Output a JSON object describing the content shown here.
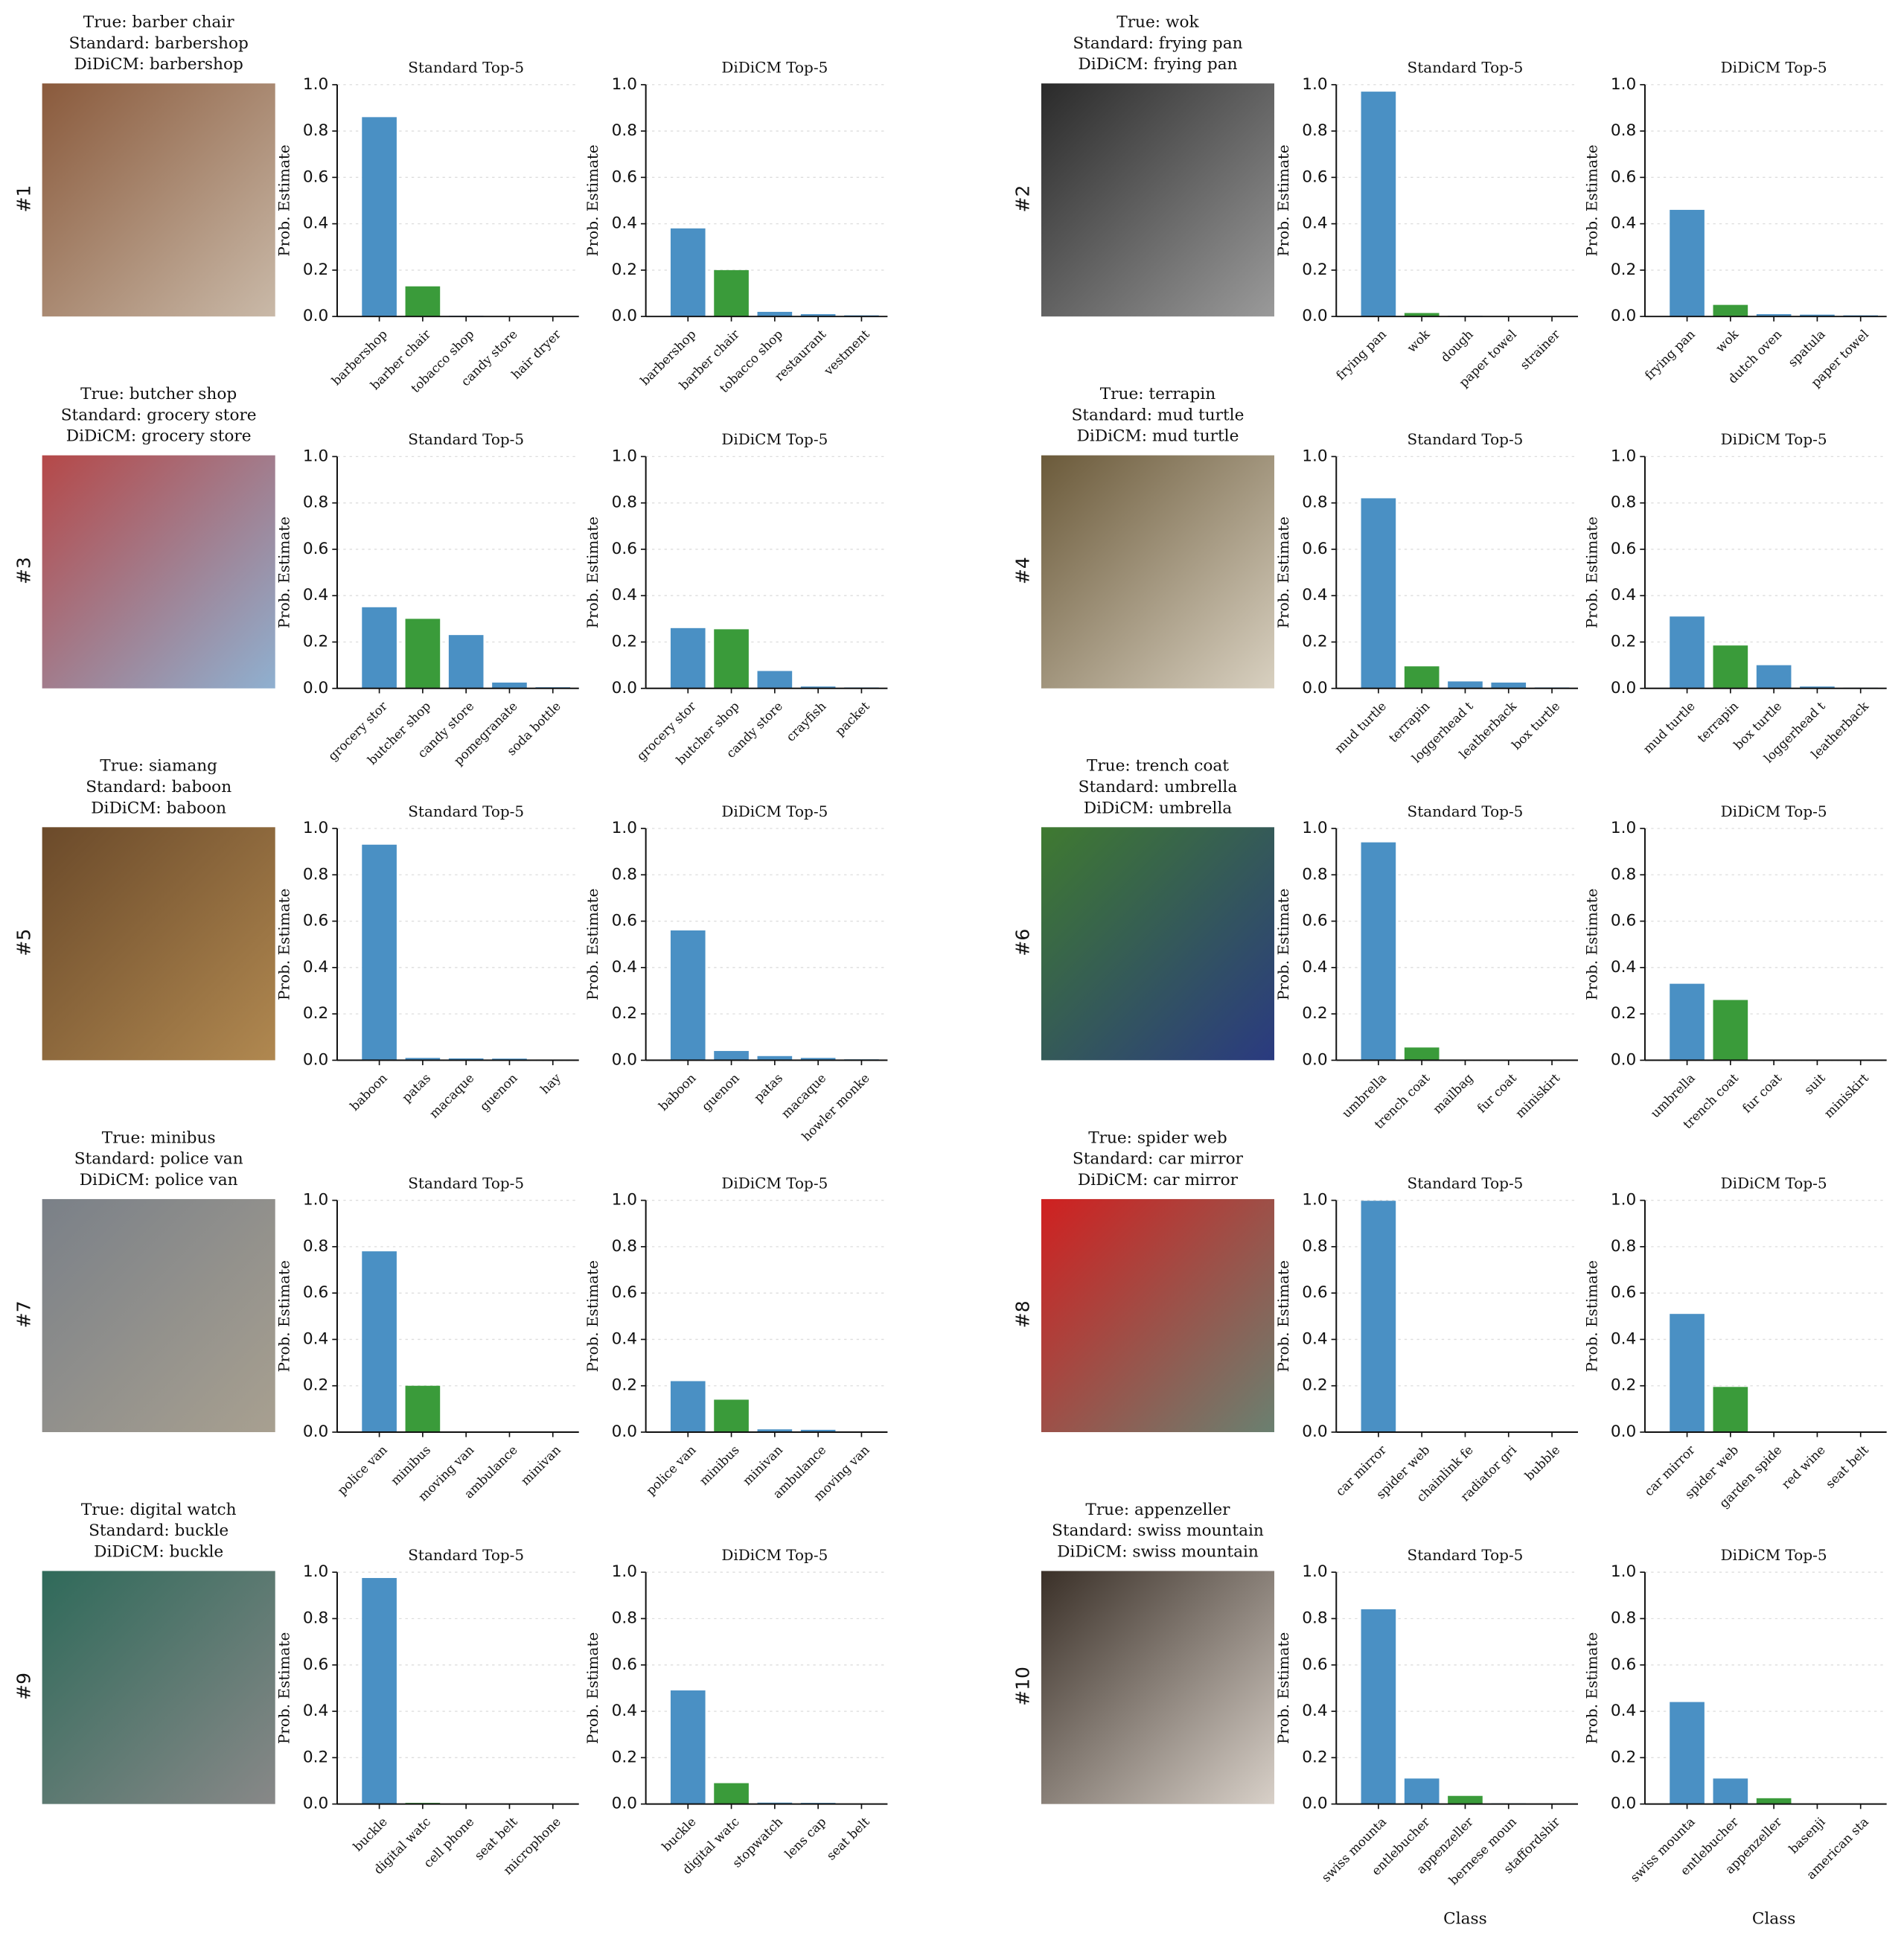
{
  "panels": [
    {
      "number": "#1",
      "true_label": "True: barber chair",
      "standard_label": "Standard: barbershop",
      "didicm_label": "DiDiCM: barbershop"
    },
    {
      "number": "#2",
      "true_label": "True: wok",
      "standard_label": "Standard: frying pan",
      "didicm_label": "DiDiCM: frying pan"
    },
    {
      "number": "#3",
      "true_label": "True: butcher shop",
      "standard_label": "Standard: grocery store",
      "didicm_label": "DiDiCM: grocery store"
    },
    {
      "number": "#4",
      "true_label": "True: terrapin",
      "standard_label": "Standard: mud turtle",
      "didicm_label": "DiDiCM: mud turtle"
    },
    {
      "number": "#5",
      "true_label": "True: siamang",
      "standard_label": "Standard: baboon",
      "didicm_label": "DiDiCM: baboon"
    },
    {
      "number": "#6",
      "true_label": "True: trench coat",
      "standard_label": "Standard: umbrella",
      "didicm_label": "DiDiCM: umbrella"
    },
    {
      "number": "#7",
      "true_label": "True: minibus",
      "standard_label": "Standard: police van",
      "didicm_label": "DiDiCM: police van"
    },
    {
      "number": "#8",
      "true_label": "True: spider web",
      "standard_label": "Standard: car mirror",
      "didicm_label": "DiDiCM: car mirror"
    },
    {
      "number": "#9",
      "true_label": "True: digital watch",
      "standard_label": "Standard: buckle",
      "didicm_label": "DiDiCM: buckle"
    },
    {
      "number": "#10",
      "true_label": "True: appenzeller",
      "standard_label": "Standard: swiss mountain",
      "didicm_label": "DiDiCM: swiss mountain"
    }
  ],
  "chart_data": [
    {
      "type": "bar",
      "title": "Standard Top-5",
      "ylabel": "Prob. Estimate",
      "categories": [
        "barbershop",
        "barber chair",
        "tobacco shop",
        "candy store",
        "hair dryer"
      ],
      "values": [
        0.86,
        0.13,
        0.003,
        0.002,
        0.002
      ],
      "colors": [
        "#4a90c4",
        "#3a9b3a",
        "#4a90c4",
        "#4a90c4",
        "#4a90c4"
      ],
      "ylim": [
        0,
        1
      ],
      "yticks": [
        {
          "value": 0,
          "label": "0.0"
        },
        0.2,
        0.4,
        0.6,
        0.8,
        {
          "value": 1,
          "label": "1.0"
        }
      ],
      "grid": true
    },
    {
      "type": "bar",
      "title": "DiDiCM Top-5",
      "ylabel": "Prob. Estimate",
      "categories": [
        "barbershop",
        "barber chair",
        "tobacco shop",
        "restaurant",
        "vestment"
      ],
      "values": [
        0.38,
        0.2,
        0.02,
        0.01,
        0.005
      ],
      "colors": [
        "#4a90c4",
        "#3a9b3a",
        "#4a90c4",
        "#4a90c4",
        "#4a90c4"
      ],
      "ylim": [
        0,
        1
      ],
      "yticks": [
        {
          "value": 0,
          "label": "0.0"
        },
        0.2,
        0.4,
        0.6,
        0.8,
        {
          "value": 1,
          "label": "1.0"
        }
      ],
      "grid": true
    },
    {
      "type": "bar",
      "title": "Standard Top-5",
      "ylabel": "Prob. Estimate",
      "categories": [
        "frying pan",
        "wok",
        "dough",
        "paper towel",
        "strainer"
      ],
      "values": [
        0.97,
        0.015,
        0.003,
        0.002,
        0.001
      ],
      "colors": [
        "#4a90c4",
        "#3a9b3a",
        "#4a90c4",
        "#4a90c4",
        "#4a90c4"
      ],
      "ylim": [
        0,
        1
      ],
      "yticks": [
        {
          "value": 0,
          "label": "0.0"
        },
        0.2,
        0.4,
        0.6,
        0.8,
        {
          "value": 1,
          "label": "1.0"
        }
      ],
      "grid": true
    },
    {
      "type": "bar",
      "title": "DiDiCM Top-5",
      "ylabel": "Prob. Estimate",
      "categories": [
        "frying pan",
        "wok",
        "dutch oven",
        "spatula",
        "paper towel"
      ],
      "values": [
        0.46,
        0.05,
        0.01,
        0.008,
        0.005
      ],
      "colors": [
        "#4a90c4",
        "#3a9b3a",
        "#4a90c4",
        "#4a90c4",
        "#4a90c4"
      ],
      "ylim": [
        0,
        1
      ],
      "yticks": [
        {
          "value": 0,
          "label": "0.0"
        },
        0.2,
        0.4,
        0.6,
        0.8,
        {
          "value": 1,
          "label": "1.0"
        }
      ],
      "grid": true
    },
    {
      "type": "bar",
      "title": "Standard Top-5",
      "ylabel": "Prob. Estimate",
      "categories": [
        "grocery stor",
        "butcher shop",
        "candy store",
        "pomegranate",
        "soda bottle"
      ],
      "values": [
        0.35,
        0.3,
        0.23,
        0.025,
        0.005
      ],
      "colors": [
        "#4a90c4",
        "#3a9b3a",
        "#4a90c4",
        "#4a90c4",
        "#4a90c4"
      ],
      "ylim": [
        0,
        1
      ],
      "yticks": [
        {
          "value": 0,
          "label": "0.0"
        },
        0.2,
        0.4,
        0.6,
        0.8,
        {
          "value": 1,
          "label": "1.0"
        }
      ],
      "grid": true
    },
    {
      "type": "bar",
      "title": "DiDiCM Top-5",
      "ylabel": "Prob. Estimate",
      "categories": [
        "grocery stor",
        "butcher shop",
        "candy store",
        "crayfish",
        "packet"
      ],
      "values": [
        0.26,
        0.255,
        0.075,
        0.008,
        0.004
      ],
      "colors": [
        "#4a90c4",
        "#3a9b3a",
        "#4a90c4",
        "#4a90c4",
        "#4a90c4"
      ],
      "ylim": [
        0,
        1
      ],
      "yticks": [
        {
          "value": 0,
          "label": "0.0"
        },
        0.2,
        0.4,
        0.6,
        0.8,
        {
          "value": 1,
          "label": "1.0"
        }
      ],
      "grid": true
    },
    {
      "type": "bar",
      "title": "Standard Top-5",
      "ylabel": "Prob. Estimate",
      "categories": [
        "mud turtle",
        "terrapin",
        "loggerhead t",
        "leatherback",
        "box turtle"
      ],
      "values": [
        0.82,
        0.095,
        0.03,
        0.025,
        0.004
      ],
      "colors": [
        "#4a90c4",
        "#3a9b3a",
        "#4a90c4",
        "#4a90c4",
        "#4a90c4"
      ],
      "ylim": [
        0,
        1
      ],
      "yticks": [
        {
          "value": 0,
          "label": "0.0"
        },
        0.2,
        0.4,
        0.6,
        0.8,
        {
          "value": 1,
          "label": "1.0"
        }
      ],
      "grid": true
    },
    {
      "type": "bar",
      "title": "DiDiCM Top-5",
      "ylabel": "Prob. Estimate",
      "categories": [
        "mud turtle",
        "terrapin",
        "box turtle",
        "loggerhead t",
        "leatherback"
      ],
      "values": [
        0.31,
        0.185,
        0.1,
        0.008,
        0.003
      ],
      "colors": [
        "#4a90c4",
        "#3a9b3a",
        "#4a90c4",
        "#4a90c4",
        "#4a90c4"
      ],
      "ylim": [
        0,
        1
      ],
      "yticks": [
        {
          "value": 0,
          "label": "0.0"
        },
        0.2,
        0.4,
        0.6,
        0.8,
        {
          "value": 1,
          "label": "1.0"
        }
      ],
      "grid": true
    },
    {
      "type": "bar",
      "title": "Standard Top-5",
      "ylabel": "Prob. Estimate",
      "categories": [
        "baboon",
        "patas",
        "macaque",
        "guenon",
        "hay"
      ],
      "values": [
        0.93,
        0.01,
        0.008,
        0.007,
        0.003
      ],
      "colors": [
        "#4a90c4",
        "#4a90c4",
        "#4a90c4",
        "#4a90c4",
        "#4a90c4"
      ],
      "ylim": [
        0,
        1
      ],
      "yticks": [
        {
          "value": 0,
          "label": "0.0"
        },
        0.2,
        0.4,
        0.6,
        0.8,
        {
          "value": 1,
          "label": "1.0"
        }
      ],
      "grid": true
    },
    {
      "type": "bar",
      "title": "DiDiCM Top-5",
      "ylabel": "Prob. Estimate",
      "categories": [
        "baboon",
        "guenon",
        "patas",
        "macaque",
        "howler monke"
      ],
      "values": [
        0.56,
        0.04,
        0.018,
        0.01,
        0.004
      ],
      "colors": [
        "#4a90c4",
        "#4a90c4",
        "#4a90c4",
        "#4a90c4",
        "#4a90c4"
      ],
      "ylim": [
        0,
        1
      ],
      "yticks": [
        {
          "value": 0,
          "label": "0.0"
        },
        0.2,
        0.4,
        0.6,
        0.8,
        {
          "value": 1,
          "label": "1.0"
        }
      ],
      "grid": true
    },
    {
      "type": "bar",
      "title": "Standard Top-5",
      "ylabel": "Prob. Estimate",
      "categories": [
        "umbrella",
        "trench coat",
        "mailbag",
        "fur coat",
        "miniskirt"
      ],
      "values": [
        0.94,
        0.055,
        0.002,
        0.001,
        0.001
      ],
      "colors": [
        "#4a90c4",
        "#3a9b3a",
        "#4a90c4",
        "#4a90c4",
        "#4a90c4"
      ],
      "ylim": [
        0,
        1
      ],
      "yticks": [
        {
          "value": 0,
          "label": "0.0"
        },
        0.2,
        0.4,
        0.6,
        0.8,
        {
          "value": 1,
          "label": "1.0"
        }
      ],
      "grid": true
    },
    {
      "type": "bar",
      "title": "DiDiCM Top-5",
      "ylabel": "Prob. Estimate",
      "categories": [
        "umbrella",
        "trench coat",
        "fur coat",
        "suit",
        "miniskirt"
      ],
      "values": [
        0.33,
        0.26,
        0.002,
        0.001,
        0.001
      ],
      "colors": [
        "#4a90c4",
        "#3a9b3a",
        "#4a90c4",
        "#4a90c4",
        "#4a90c4"
      ],
      "ylim": [
        0,
        1
      ],
      "yticks": [
        {
          "value": 0,
          "label": "0.0"
        },
        0.2,
        0.4,
        0.6,
        0.8,
        {
          "value": 1,
          "label": "1.0"
        }
      ],
      "grid": true
    },
    {
      "type": "bar",
      "title": "Standard Top-5",
      "ylabel": "Prob. Estimate",
      "categories": [
        "police van",
        "minibus",
        "moving van",
        "ambulance",
        "minivan"
      ],
      "values": [
        0.78,
        0.2,
        0.003,
        0.002,
        0.001
      ],
      "colors": [
        "#4a90c4",
        "#3a9b3a",
        "#4a90c4",
        "#4a90c4",
        "#4a90c4"
      ],
      "ylim": [
        0,
        1
      ],
      "yticks": [
        {
          "value": 0,
          "label": "0.0"
        },
        0.2,
        0.4,
        0.6,
        0.8,
        {
          "value": 1,
          "label": "1.0"
        }
      ],
      "grid": true
    },
    {
      "type": "bar",
      "title": "DiDiCM Top-5",
      "ylabel": "Prob. Estimate",
      "categories": [
        "police van",
        "minibus",
        "minivan",
        "ambulance",
        "moving van"
      ],
      "values": [
        0.22,
        0.14,
        0.012,
        0.01,
        0.003
      ],
      "colors": [
        "#4a90c4",
        "#3a9b3a",
        "#4a90c4",
        "#4a90c4",
        "#4a90c4"
      ],
      "ylim": [
        0,
        1
      ],
      "yticks": [
        {
          "value": 0,
          "label": "0.0"
        },
        0.2,
        0.4,
        0.6,
        0.8,
        {
          "value": 1,
          "label": "1.0"
        }
      ],
      "grid": true
    },
    {
      "type": "bar",
      "title": "Standard Top-5",
      "ylabel": "Prob. Estimate",
      "categories": [
        "car mirror",
        "spider web",
        "chainlink fe",
        "radiator gri",
        "bubble"
      ],
      "values": [
        0.998,
        0.001,
        0.0005,
        0.0003,
        0.0002
      ],
      "colors": [
        "#4a90c4",
        "#3a9b3a",
        "#4a90c4",
        "#4a90c4",
        "#4a90c4"
      ],
      "ylim": [
        0,
        1
      ],
      "yticks": [
        {
          "value": 0,
          "label": "0.0"
        },
        0.2,
        0.4,
        0.6,
        0.8,
        {
          "value": 1,
          "label": "1.0"
        }
      ],
      "grid": true
    },
    {
      "type": "bar",
      "title": "DiDiCM Top-5",
      "ylabel": "Prob. Estimate",
      "categories": [
        "car mirror",
        "spider web",
        "garden spide",
        "red wine",
        "seat belt"
      ],
      "values": [
        0.51,
        0.195,
        0.002,
        0.001,
        0.001
      ],
      "colors": [
        "#4a90c4",
        "#3a9b3a",
        "#4a90c4",
        "#4a90c4",
        "#4a90c4"
      ],
      "ylim": [
        0,
        1
      ],
      "yticks": [
        {
          "value": 0,
          "label": "0.0"
        },
        0.2,
        0.4,
        0.6,
        0.8,
        {
          "value": 1,
          "label": "1.0"
        }
      ],
      "grid": true
    },
    {
      "type": "bar",
      "title": "Standard Top-5",
      "ylabel": "Prob. Estimate",
      "categories": [
        "buckle",
        "digital watc",
        "cell phone",
        "seat belt",
        "microphone"
      ],
      "values": [
        0.975,
        0.005,
        0.002,
        0.001,
        0.001
      ],
      "colors": [
        "#4a90c4",
        "#3a9b3a",
        "#4a90c4",
        "#4a90c4",
        "#4a90c4"
      ],
      "ylim": [
        0,
        1
      ],
      "yticks": [
        {
          "value": 0,
          "label": "0.0"
        },
        0.2,
        0.4,
        0.6,
        0.8,
        {
          "value": 1,
          "label": "1.0"
        }
      ],
      "grid": true
    },
    {
      "type": "bar",
      "title": "DiDiCM Top-5",
      "ylabel": "Prob. Estimate",
      "categories": [
        "buckle",
        "digital watc",
        "stopwatch",
        "lens cap",
        "seat belt"
      ],
      "values": [
        0.49,
        0.09,
        0.006,
        0.005,
        0.002
      ],
      "colors": [
        "#4a90c4",
        "#3a9b3a",
        "#4a90c4",
        "#4a90c4",
        "#4a90c4"
      ],
      "ylim": [
        0,
        1
      ],
      "yticks": [
        {
          "value": 0,
          "label": "0.0"
        },
        0.2,
        0.4,
        0.6,
        0.8,
        {
          "value": 1,
          "label": "1.0"
        }
      ],
      "grid": true
    },
    {
      "type": "bar",
      "title": "Standard Top-5",
      "ylabel": "Prob. Estimate",
      "xlabel": "Class",
      "categories": [
        "swiss mounta",
        "entlebucher",
        "appenzeller",
        "bernese moun",
        "staffordshir"
      ],
      "values": [
        0.84,
        0.11,
        0.035,
        0.003,
        0.001
      ],
      "colors": [
        "#4a90c4",
        "#4a90c4",
        "#3a9b3a",
        "#4a90c4",
        "#4a90c4"
      ],
      "ylim": [
        0,
        1
      ],
      "yticks": [
        {
          "value": 0,
          "label": "0.0"
        },
        0.2,
        0.4,
        0.6,
        0.8,
        {
          "value": 1,
          "label": "1.0"
        }
      ],
      "grid": true
    },
    {
      "type": "bar",
      "title": "DiDiCM Top-5",
      "ylabel": "Prob. Estimate",
      "xlabel": "Class",
      "categories": [
        "swiss mounta",
        "entlebucher",
        "appenzeller",
        "basenji",
        "american sta"
      ],
      "values": [
        0.44,
        0.11,
        0.025,
        0.002,
        0.001
      ],
      "colors": [
        "#4a90c4",
        "#4a90c4",
        "#3a9b3a",
        "#4a90c4",
        "#4a90c4"
      ],
      "ylim": [
        0,
        1
      ],
      "yticks": [
        {
          "value": 0,
          "label": "0.0"
        },
        0.2,
        0.4,
        0.6,
        0.8,
        {
          "value": 1,
          "label": "1.0"
        }
      ],
      "grid": true
    }
  ]
}
